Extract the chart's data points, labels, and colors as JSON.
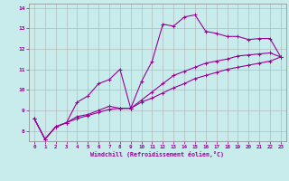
{
  "xlabel": "Windchill (Refroidissement éolien,°C)",
  "ylabel": "",
  "bg_color": "#c8ecec",
  "line_color": "#990099",
  "grid_color": "#b0b0b0",
  "xlim": [
    -0.5,
    23.5
  ],
  "ylim": [
    7.5,
    14.2
  ],
  "xticks": [
    0,
    1,
    2,
    3,
    4,
    5,
    6,
    7,
    8,
    9,
    10,
    11,
    12,
    13,
    14,
    15,
    16,
    17,
    18,
    19,
    20,
    21,
    22,
    23
  ],
  "yticks": [
    8,
    9,
    10,
    11,
    12,
    13,
    14
  ],
  "line1_x": [
    0,
    1,
    2,
    3,
    4,
    5,
    6,
    7,
    8,
    9,
    10,
    11,
    12,
    13,
    14,
    15,
    16,
    17,
    18,
    19,
    20,
    21,
    22,
    23
  ],
  "line1_y": [
    8.6,
    7.6,
    8.2,
    8.4,
    9.4,
    9.7,
    10.3,
    10.5,
    11.0,
    9.1,
    10.4,
    11.4,
    13.2,
    13.1,
    13.55,
    13.65,
    12.85,
    12.75,
    12.6,
    12.6,
    12.45,
    12.5,
    12.5,
    11.6
  ],
  "line2_x": [
    0,
    1,
    2,
    3,
    4,
    5,
    6,
    7,
    8,
    9,
    10,
    11,
    12,
    13,
    14,
    15,
    16,
    17,
    18,
    19,
    20,
    21,
    22,
    23
  ],
  "line2_y": [
    8.6,
    7.6,
    8.2,
    8.4,
    8.7,
    8.8,
    9.0,
    9.2,
    9.1,
    9.1,
    9.5,
    9.9,
    10.3,
    10.7,
    10.9,
    11.1,
    11.3,
    11.4,
    11.5,
    11.65,
    11.7,
    11.75,
    11.8,
    11.6
  ],
  "line3_x": [
    0,
    1,
    2,
    3,
    4,
    5,
    6,
    7,
    8,
    9,
    10,
    11,
    12,
    13,
    14,
    15,
    16,
    17,
    18,
    19,
    20,
    21,
    22,
    23
  ],
  "line3_y": [
    8.6,
    7.6,
    8.2,
    8.4,
    8.6,
    8.75,
    8.9,
    9.05,
    9.1,
    9.1,
    9.4,
    9.6,
    9.85,
    10.1,
    10.3,
    10.55,
    10.7,
    10.85,
    11.0,
    11.1,
    11.2,
    11.3,
    11.4,
    11.6
  ]
}
